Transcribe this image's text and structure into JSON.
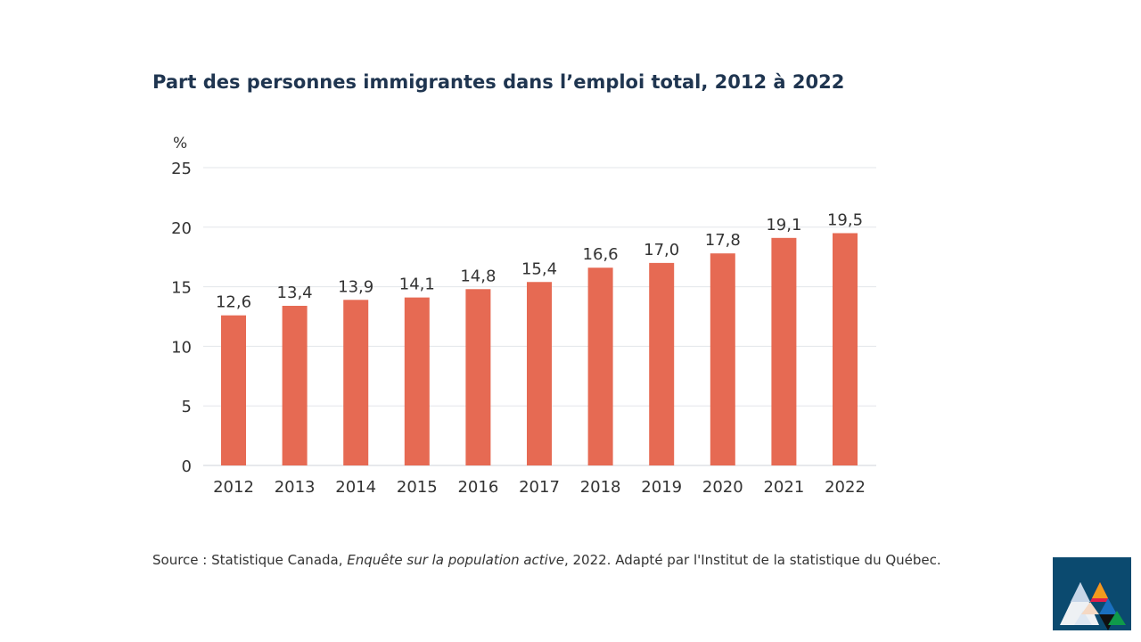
{
  "chart_data": {
    "type": "bar",
    "title": "Part des personnes immigrantes dans l’emploi total, 2012 à 2022",
    "ylabel": "%",
    "xlabel": "",
    "categories": [
      "2012",
      "2013",
      "2014",
      "2015",
      "2016",
      "2017",
      "2018",
      "2019",
      "2020",
      "2021",
      "2022"
    ],
    "values": [
      12.6,
      13.4,
      13.9,
      14.1,
      14.8,
      15.4,
      16.6,
      17.0,
      17.8,
      19.1,
      19.5
    ],
    "data_labels": [
      "12,6",
      "13,4",
      "13,9",
      "14,1",
      "14,8",
      "15,4",
      "16,6",
      "17,0",
      "17,8",
      "19,1",
      "19,5"
    ],
    "ylim": [
      0,
      25
    ],
    "yticks": [
      0,
      5,
      10,
      15,
      20,
      25
    ],
    "grid": true,
    "bar_color": "#e66a53"
  },
  "source": {
    "prefix": "Source : Statistique Canada, ",
    "italic": "Enquête sur la population active",
    "suffix": ", 2022. Adapté par l'Institut de la statistique du Québec."
  },
  "logo": {
    "name": "institut-statistique-quebec-logo",
    "background": "#0b4a6f"
  }
}
